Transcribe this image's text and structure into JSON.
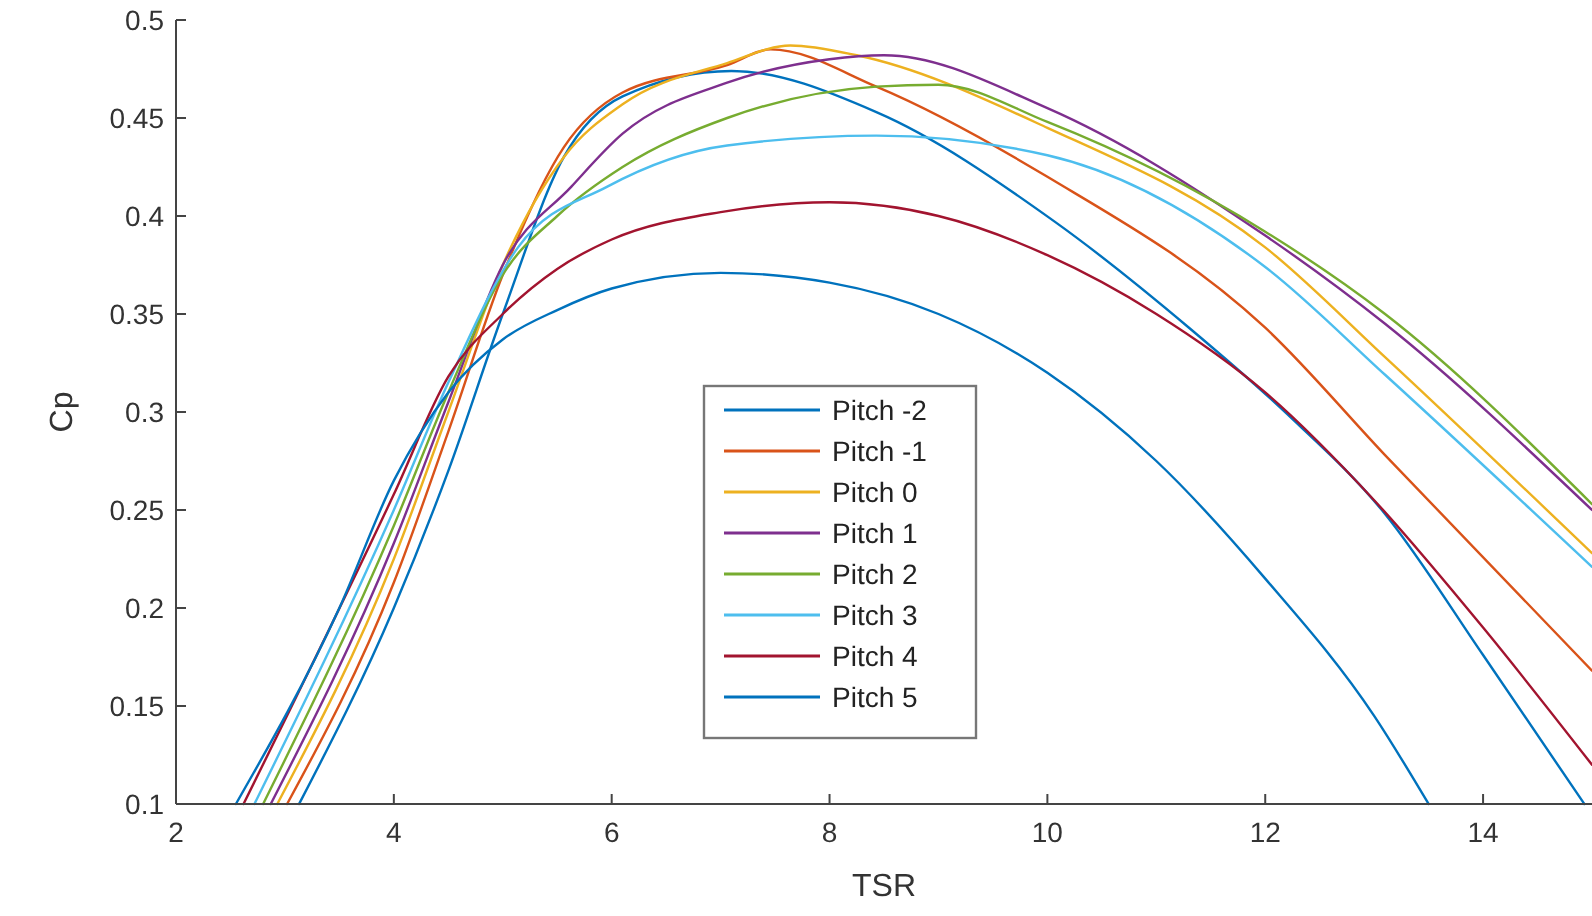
{
  "chart_data": {
    "type": "line",
    "xlabel": "TSR",
    "ylabel": "Cp",
    "xlim": [
      2,
      15
    ],
    "ylim": [
      0.1,
      0.5
    ],
    "xticks": [
      2,
      4,
      6,
      8,
      10,
      12,
      14
    ],
    "yticks": [
      0.1,
      0.15,
      0.2,
      0.25,
      0.3,
      0.35,
      0.4,
      0.45,
      0.5
    ],
    "grid": false,
    "legend": "bottom",
    "marker": "none",
    "line_style": "solid",
    "series": [
      {
        "name": "Pitch -2",
        "color": "#0072bd",
        "x": [
          3.13,
          4,
          4.5,
          5,
          5.56,
          6.1,
          7.1,
          8.43,
          10.07,
          11.3,
          12.2,
          13.1,
          14,
          14.93
        ],
        "values": [
          0.1,
          0.2,
          0.27,
          0.35,
          0.43,
          0.461,
          0.474,
          0.453,
          0.397,
          0.343,
          0.299,
          0.248,
          0.176,
          0.1
        ]
      },
      {
        "name": "Pitch -1",
        "color": "#d95319",
        "x": [
          3.02,
          4,
          4.5,
          5,
          5.56,
          6.1,
          7.06,
          7.46,
          8.43,
          10,
          12,
          13.1,
          15
        ],
        "values": [
          0.1,
          0.213,
          0.29,
          0.37,
          0.435,
          0.463,
          0.477,
          0.485,
          0.466,
          0.42,
          0.343,
          0.278,
          0.168
        ]
      },
      {
        "name": "Pitch 0",
        "color": "#edb120",
        "x": [
          2.93,
          4,
          4.5,
          5,
          5.56,
          6.1,
          7.06,
          7.64,
          8.25,
          10,
          12,
          13.1,
          15
        ],
        "values": [
          0.1,
          0.225,
          0.3,
          0.375,
          0.43,
          0.457,
          0.478,
          0.487,
          0.482,
          0.445,
          0.384,
          0.328,
          0.228
        ]
      },
      {
        "name": "Pitch 1",
        "color": "#7e2f8e",
        "x": [
          2.87,
          4,
          4.5,
          5,
          5.63,
          6.1,
          7.06,
          8,
          8.5,
          10,
          12,
          13.1,
          15
        ],
        "values": [
          0.1,
          0.233,
          0.305,
          0.375,
          0.415,
          0.442,
          0.468,
          0.48,
          0.482,
          0.455,
          0.39,
          0.345,
          0.25
        ]
      },
      {
        "name": "Pitch 2",
        "color": "#77ac30",
        "x": [
          2.8,
          4,
          4.5,
          5,
          5.5,
          6.1,
          7.06,
          8.43,
          9,
          10,
          12,
          13.1,
          15
        ],
        "values": [
          0.1,
          0.242,
          0.31,
          0.37,
          0.4,
          0.425,
          0.45,
          0.466,
          0.467,
          0.448,
          0.392,
          0.35,
          0.253
        ]
      },
      {
        "name": "Pitch 3",
        "color": "#4dbeee",
        "x": [
          2.72,
          4,
          4.5,
          5.14,
          5.96,
          7.06,
          8.43,
          10,
          12,
          13.1,
          15
        ],
        "values": [
          0.1,
          0.25,
          0.315,
          0.384,
          0.415,
          0.436,
          0.441,
          0.431,
          0.374,
          0.319,
          0.221
        ]
      },
      {
        "name": "Pitch 4",
        "color": "#a2142f",
        "x": [
          2.62,
          4,
          4.5,
          5,
          5.5,
          6,
          7,
          8,
          9,
          10,
          11,
          12,
          13,
          14,
          15
        ],
        "values": [
          0.1,
          0.258,
          0.318,
          0.35,
          0.373,
          0.388,
          0.402,
          0.407,
          0.4,
          0.38,
          0.35,
          0.31,
          0.255,
          0.19,
          0.12
        ]
      },
      {
        "name": "Pitch 5",
        "color": "#0072bd",
        "x": [
          2.55,
          3.5,
          4,
          4.5,
          5,
          5.5,
          6,
          7,
          8,
          9,
          10,
          11,
          12,
          13,
          13.5
        ],
        "values": [
          0.1,
          0.2,
          0.265,
          0.31,
          0.337,
          0.352,
          0.363,
          0.371,
          0.366,
          0.35,
          0.32,
          0.275,
          0.215,
          0.145,
          0.1
        ]
      }
    ]
  }
}
